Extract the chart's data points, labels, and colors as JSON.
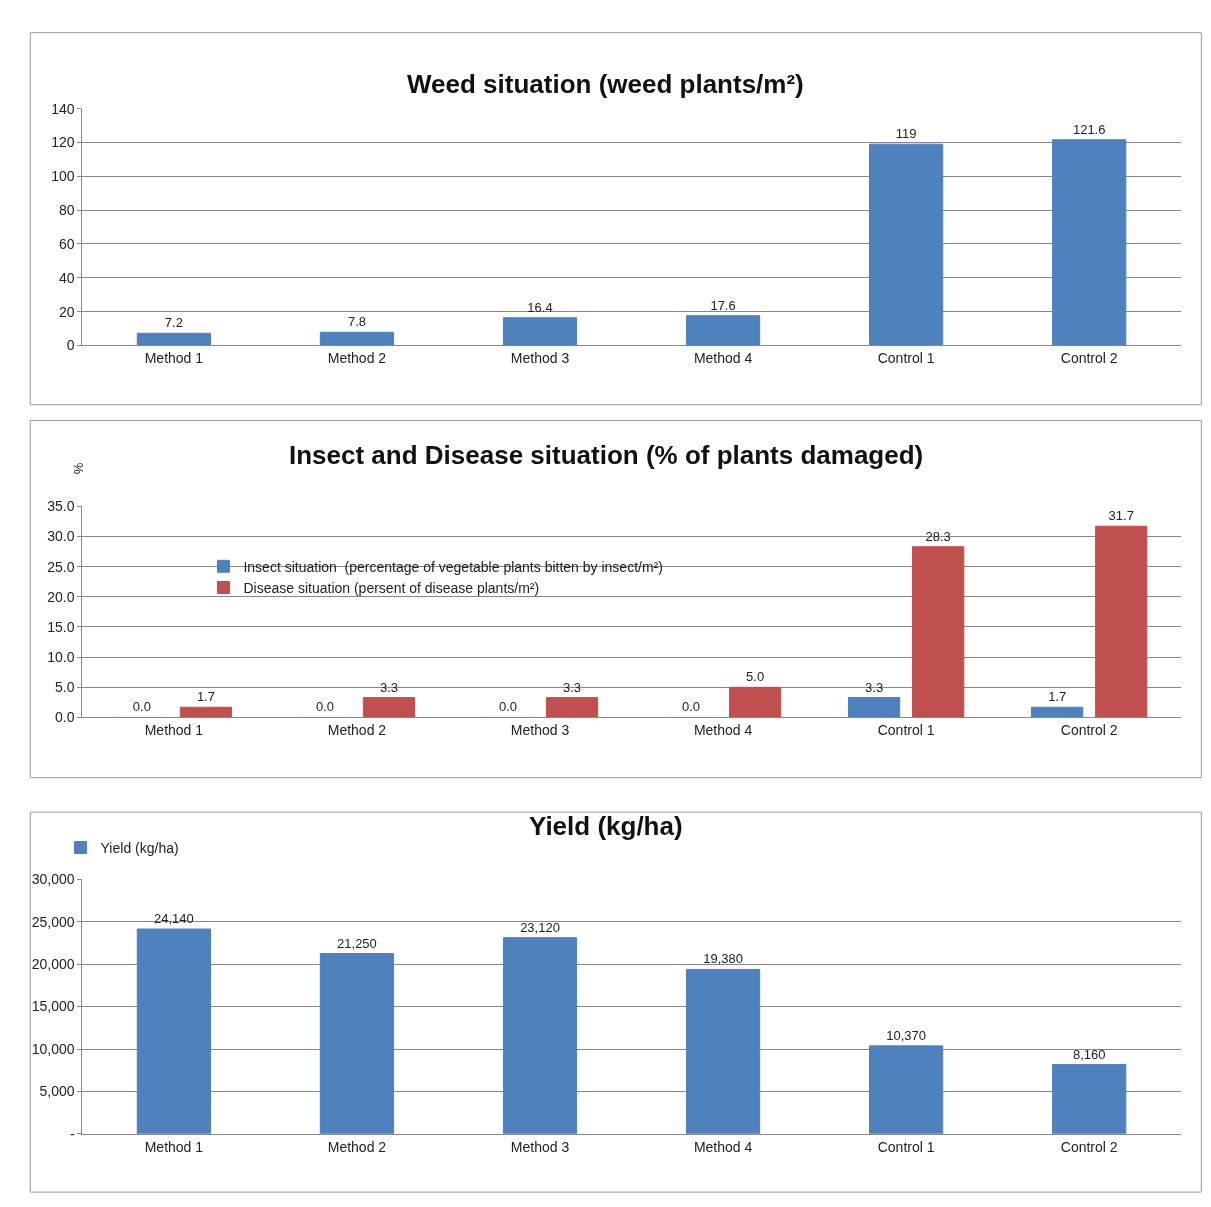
{
  "chart_data": [
    {
      "type": "bar",
      "title": "Weed situation (weed plants/m²)",
      "categories": [
        "Method 1",
        "Method 2",
        "Method 3",
        "Method 4",
        "Control 1",
        "Control 2"
      ],
      "series": [
        {
          "color": "#4f81bd",
          "values": [
            7.2,
            7.8,
            16.4,
            17.6,
            119,
            121.6
          ]
        }
      ],
      "data_labels": true,
      "ylim": [
        0,
        140
      ],
      "yticks": [
        0,
        20,
        40,
        60,
        80,
        100,
        120,
        140
      ],
      "grid": "y"
    },
    {
      "type": "bar",
      "title": "Insect and Disease situation (% of plants damaged)",
      "ylabel": "%",
      "categories": [
        "Method 1",
        "Method 2",
        "Method 3",
        "Method 4",
        "Control 1",
        "Control 2"
      ],
      "series": [
        {
          "name": "Insect situation  (percentage of vegetable plants bitten by insect/m²)",
          "color": "#4f81bd",
          "values": [
            0,
            0,
            0,
            0,
            3.3,
            1.7
          ],
          "value_labels": [
            "0.0",
            "0.0",
            "0.0",
            "0.0",
            "3.3",
            "1.7"
          ]
        },
        {
          "name": "Disease situation (persent of disease plants/m²)",
          "color": "#c0504d",
          "values": [
            1.7,
            3.3,
            3.3,
            5.0,
            28.3,
            31.7
          ],
          "value_labels": [
            "1.7",
            "3.3",
            "3.3",
            "5.0",
            "28.3",
            "31.7"
          ]
        }
      ],
      "ylim": [
        0,
        35
      ],
      "yticks": [
        {
          "value": 0,
          "label": "0.0"
        },
        {
          "value": 5,
          "label": "5.0"
        },
        {
          "value": 10,
          "label": "10.0"
        },
        {
          "value": 15,
          "label": "15.0"
        },
        {
          "value": 20,
          "label": "20.0"
        },
        {
          "value": 25,
          "label": "25.0"
        },
        {
          "value": 30,
          "label": "30.0"
        },
        {
          "value": 35,
          "label": "35.0"
        }
      ],
      "grid": "y",
      "legend": "top left"
    },
    {
      "type": "bar",
      "title": "Yield (kg/ha)",
      "categories": [
        "Method 1",
        "Method 2",
        "Method 3",
        "Method 4",
        "Control 1",
        "Control 2"
      ],
      "series": [
        {
          "name": "Yield (kg/ha)",
          "color": "#4f81bd",
          "values": [
            24140,
            21250,
            23120,
            19380,
            10370,
            8160
          ],
          "value_labels": [
            "24,140",
            "21,250",
            "23,120",
            "19,380",
            "10,370",
            "8,160"
          ]
        }
      ],
      "ylim": [
        0,
        30000
      ],
      "yticks": [
        {
          "value": 0,
          "label": "-"
        },
        {
          "value": 5000,
          "label": "5,000"
        },
        {
          "value": 10000,
          "label": "10,000"
        },
        {
          "value": 15000,
          "label": "15,000"
        },
        {
          "value": 20000,
          "label": "20,000"
        },
        {
          "value": 25000,
          "label": "25,000"
        },
        {
          "value": 30000,
          "label": "30,000"
        }
      ],
      "grid": "y",
      "legend": "top left"
    }
  ]
}
